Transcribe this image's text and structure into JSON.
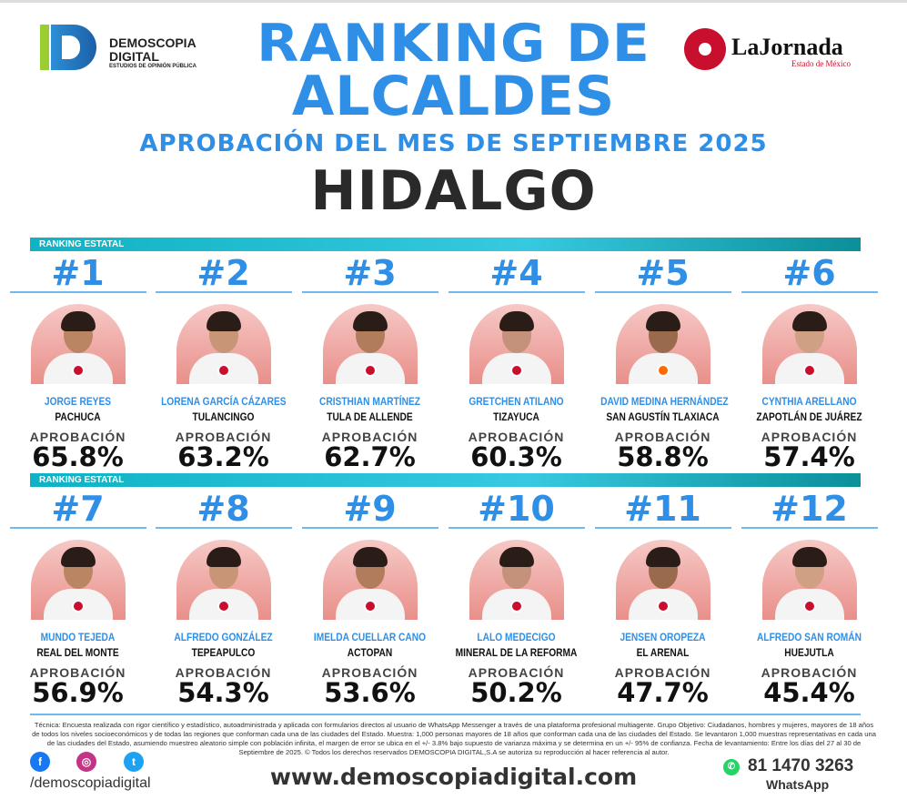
{
  "header": {
    "title_line1": "RANKING DE",
    "title_line2": "ALCALDES",
    "subtitle": "APROBACIÓN DEL MES DE SEPTIEMBRE 2025",
    "state": "HIDALGO"
  },
  "logos": {
    "demoscopia_line1": "DEMOSCOPIA",
    "demoscopia_line2": "DIGITAL",
    "demoscopia_tag": "ESTUDIOS DE OPINIÓN PÚBLICA",
    "jornada": "LaJornada",
    "jornada_sub": "Estado de México"
  },
  "bands": [
    "RANKING ESTATAL",
    "RANKING ESTATAL"
  ],
  "approval_label": "APROBACIÓN",
  "rankings": [
    {
      "rank": "#1",
      "name": "JORGE REYES",
      "city": "PACHUCA",
      "approval": "65.8%"
    },
    {
      "rank": "#2",
      "name": "LORENA GARCÍA CÁZARES",
      "city": "TULANCINGO",
      "approval": "63.2%"
    },
    {
      "rank": "#3",
      "name": "CRISTHIAN MARTÍNEZ",
      "city": "TULA DE ALLENDE",
      "approval": "62.7%"
    },
    {
      "rank": "#4",
      "name": "GRETCHEN ATILANO",
      "city": "TIZAYUCA",
      "approval": "60.3%"
    },
    {
      "rank": "#5",
      "name": "DAVID MEDINA HERNÁNDEZ",
      "city": "SAN AGUSTÍN TLAXIACA",
      "approval": "58.8%"
    },
    {
      "rank": "#6",
      "name": "CYNTHIA ARELLANO",
      "city": "ZAPOTLÁN DE JUÁREZ",
      "approval": "57.4%"
    },
    {
      "rank": "#7",
      "name": "MUNDO TEJEDA",
      "city": "REAL DEL MONTE",
      "approval": "56.9%"
    },
    {
      "rank": "#8",
      "name": "ALFREDO GONZÁLEZ",
      "city": "TEPEAPULCO",
      "approval": "54.3%"
    },
    {
      "rank": "#9",
      "name": "IMELDA CUELLAR CANO",
      "city": "ACTOPAN",
      "approval": "53.6%"
    },
    {
      "rank": "#10",
      "name": "LALO MEDECIGO",
      "city": "MINERAL DE LA REFORMA",
      "approval": "50.2%"
    },
    {
      "rank": "#11",
      "name": "JENSEN OROPEZA",
      "city": "EL ARENAL",
      "approval": "47.7%"
    },
    {
      "rank": "#12",
      "name": "ALFREDO SAN ROMÁN",
      "city": "HUEJUTLA",
      "approval": "45.4%"
    }
  ],
  "footer": {
    "methodology": "Técnica: Encuesta realizada con rigor científico y estadístico, autoadministrada y aplicada con formularios directos al usuario de WhatsApp Messenger a través de una plataforma profesional multiagente. Grupo Objetivo: Ciudadanos, hombres y mujeres, mayores de 18 años de todos los niveles socioeconómicos y de todas las regiones que conforman cada una de las ciudades del Estado. Muestra: 1,000 personas mayores de 18 años que conforman cada una de las ciudades del Estado. Se levantaron 1,000 muestras representativas en cada una de las ciudades del Estado, asumiendo muestreo aleatorio simple con población infinita, el margen de error se ubica en el +/- 3.8% bajo supuesto de varianza máxima y se determina en un +/- 95% de confianza. Fecha de levantamiento: Entre los días del 27 al 30 de Septiembre de 2025. © Todos los derechos reservados DEMOSCOPIA DIGITAL,S.A se autoriza su reproducción al hacer referencia al autor.",
    "handle": "/demoscopiadigital",
    "website": "www.demoscopiadigital.com",
    "phone": "81 1470 3263",
    "whatsapp": "WhatsApp"
  },
  "colors": {
    "accent": "#2f8fe6",
    "band": "#1bb8cc",
    "dark": "#2a2a2a"
  }
}
